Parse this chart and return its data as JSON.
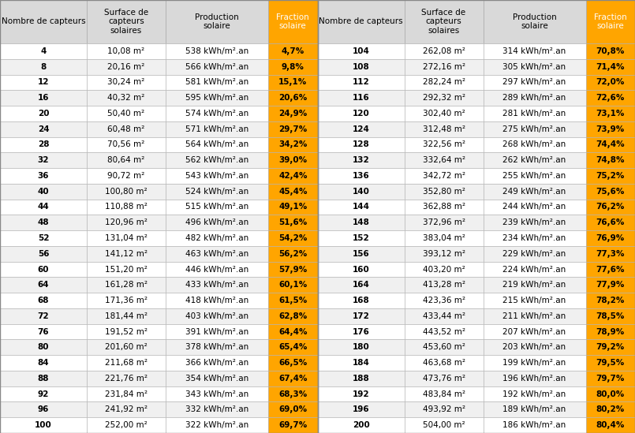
{
  "col_headers": [
    "Nombre de capteurs",
    "Surface de\ncapteurs\nsolaires",
    "Production\nsolaire",
    "Fraction\nsolaire"
  ],
  "left_table": [
    [
      4,
      "10,08 m²",
      "538 kWh/m².an",
      "4,7%"
    ],
    [
      8,
      "20,16 m²",
      "566 kWh/m².an",
      "9,8%"
    ],
    [
      12,
      "30,24 m²",
      "581 kWh/m².an",
      "15,1%"
    ],
    [
      16,
      "40,32 m²",
      "595 kWh/m².an",
      "20,6%"
    ],
    [
      20,
      "50,40 m²",
      "574 kWh/m².an",
      "24,9%"
    ],
    [
      24,
      "60,48 m²",
      "571 kWh/m².an",
      "29,7%"
    ],
    [
      28,
      "70,56 m²",
      "564 kWh/m².an",
      "34,2%"
    ],
    [
      32,
      "80,64 m²",
      "562 kWh/m².an",
      "39,0%"
    ],
    [
      36,
      "90,72 m²",
      "543 kWh/m².an",
      "42,4%"
    ],
    [
      40,
      "100,80 m²",
      "524 kWh/m².an",
      "45,4%"
    ],
    [
      44,
      "110,88 m²",
      "515 kWh/m².an",
      "49,1%"
    ],
    [
      48,
      "120,96 m²",
      "496 kWh/m².an",
      "51,6%"
    ],
    [
      52,
      "131,04 m²",
      "482 kWh/m².an",
      "54,2%"
    ],
    [
      56,
      "141,12 m²",
      "463 kWh/m².an",
      "56,2%"
    ],
    [
      60,
      "151,20 m²",
      "446 kWh/m².an",
      "57,9%"
    ],
    [
      64,
      "161,28 m²",
      "433 kWh/m².an",
      "60,1%"
    ],
    [
      68,
      "171,36 m²",
      "418 kWh/m².an",
      "61,5%"
    ],
    [
      72,
      "181,44 m²",
      "403 kWh/m².an",
      "62,8%"
    ],
    [
      76,
      "191,52 m²",
      "391 kWh/m².an",
      "64,4%"
    ],
    [
      80,
      "201,60 m²",
      "378 kWh/m².an",
      "65,4%"
    ],
    [
      84,
      "211,68 m²",
      "366 kWh/m².an",
      "66,5%"
    ],
    [
      88,
      "221,76 m²",
      "354 kWh/m².an",
      "67,4%"
    ],
    [
      92,
      "231,84 m²",
      "343 kWh/m².an",
      "68,3%"
    ],
    [
      96,
      "241,92 m²",
      "332 kWh/m².an",
      "69,0%"
    ],
    [
      100,
      "252,00 m²",
      "322 kWh/m².an",
      "69,7%"
    ]
  ],
  "right_table": [
    [
      104,
      "262,08 m²",
      "314 kWh/m².an",
      "70,8%"
    ],
    [
      108,
      "272,16 m²",
      "305 kWh/m².an",
      "71,4%"
    ],
    [
      112,
      "282,24 m²",
      "297 kWh/m².an",
      "72,0%"
    ],
    [
      116,
      "292,32 m²",
      "289 kWh/m².an",
      "72,6%"
    ],
    [
      120,
      "302,40 m²",
      "281 kWh/m².an",
      "73,1%"
    ],
    [
      124,
      "312,48 m²",
      "275 kWh/m².an",
      "73,9%"
    ],
    [
      128,
      "322,56 m²",
      "268 kWh/m².an",
      "74,4%"
    ],
    [
      132,
      "332,64 m²",
      "262 kWh/m².an",
      "74,8%"
    ],
    [
      136,
      "342,72 m²",
      "255 kWh/m².an",
      "75,2%"
    ],
    [
      140,
      "352,80 m²",
      "249 kWh/m².an",
      "75,6%"
    ],
    [
      144,
      "362,88 m²",
      "244 kWh/m².an",
      "76,2%"
    ],
    [
      148,
      "372,96 m²",
      "239 kWh/m².an",
      "76,6%"
    ],
    [
      152,
      "383,04 m²",
      "234 kWh/m².an",
      "76,9%"
    ],
    [
      156,
      "393,12 m²",
      "229 kWh/m².an",
      "77,3%"
    ],
    [
      160,
      "403,20 m²",
      "224 kWh/m².an",
      "77,6%"
    ],
    [
      164,
      "413,28 m²",
      "219 kWh/m².an",
      "77,9%"
    ],
    [
      168,
      "423,36 m²",
      "215 kWh/m².an",
      "78,2%"
    ],
    [
      172,
      "433,44 m²",
      "211 kWh/m².an",
      "78,5%"
    ],
    [
      176,
      "443,52 m²",
      "207 kWh/m².an",
      "78,9%"
    ],
    [
      180,
      "453,60 m²",
      "203 kWh/m².an",
      "79,2%"
    ],
    [
      184,
      "463,68 m²",
      "199 kWh/m².an",
      "79,5%"
    ],
    [
      188,
      "473,76 m²",
      "196 kWh/m².an",
      "79,7%"
    ],
    [
      192,
      "483,84 m²",
      "192 kWh/m².an",
      "80,0%"
    ],
    [
      196,
      "493,92 m²",
      "189 kWh/m².an",
      "80,2%"
    ],
    [
      200,
      "504,00 m²",
      "186 kWh/m².an",
      "80,4%"
    ]
  ],
  "header_bg": "#d9d9d9",
  "fraction_header_bg": "#FFA500",
  "row_bg_odd": "#ffffff",
  "row_bg_even": "#f0f0f0",
  "fraction_bg": "#FFA500",
  "header_text_color": "#000000",
  "fraction_header_text": "#ffffff",
  "body_text_color": "#000000",
  "fraction_text_color": "#000000",
  "border_color": "#b0b0b0",
  "num_rows": 25,
  "figw": 8.05,
  "figh": 5.49,
  "dpi": 100
}
